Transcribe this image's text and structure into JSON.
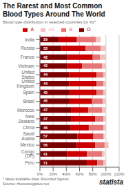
{
  "chart_data": {
    "type": "bar",
    "orientation": "horizontal",
    "stacked": true,
    "grid": true,
    "legend": "top",
    "title": "The Rarest and Most Common\nBlood Types Around The World",
    "subtitle": "Blood type distribution in selected countries (in %)*",
    "annotations": [
      "* latest available data. Rounded figures.",
      "Source: rhesusnegative.net",
      "statista"
    ],
    "categories": [
      "India",
      "Russia",
      "France",
      "Vietnam",
      "United States",
      "United Kingdom",
      "Spain",
      "Brazil",
      "Morocco",
      "New Zealand",
      "China",
      "Saudi Arabia",
      "Mexico",
      "Congo (DR)",
      "Peru"
    ],
    "series": [
      {
        "name": "O",
        "color": "#7b0000",
        "data_labels": true,
        "values": [
          29,
          33,
          42,
          42,
          44,
          44,
          45,
          45,
          47,
          47,
          46,
          57,
          56,
          41,
          71
        ]
      },
      {
        "name": "A",
        "color": "#cc0000",
        "values": [
          27,
          36,
          38,
          22,
          42,
          42,
          41,
          34,
          26,
          37,
          28,
          24,
          28,
          30,
          16
        ]
      },
      {
        "name": "B",
        "color": "#e87575",
        "values": [
          29,
          23,
          11,
          30,
          10,
          10,
          10,
          16,
          21,
          12,
          22,
          15,
          14,
          23,
          9
        ]
      },
      {
        "name": "AB",
        "color": "#f5c0c0",
        "values": [
          7,
          8,
          9,
          6,
          4,
          4,
          4,
          5,
          6,
          4,
          4,
          2,
          6,
          4,
          4
        ]
      }
    ],
    "xlim": [
      0,
      120
    ],
    "xticks": [
      {
        "value": 0,
        "label": "0%"
      },
      {
        "value": 20,
        "label": "20%"
      },
      {
        "value": 40,
        "label": "40%"
      },
      {
        "value": 60,
        "label": "60%"
      },
      {
        "value": 80,
        "label": "80%"
      },
      {
        "value": 100,
        "label": "100%"
      },
      {
        "value": 120,
        "label": "120%"
      }
    ]
  }
}
